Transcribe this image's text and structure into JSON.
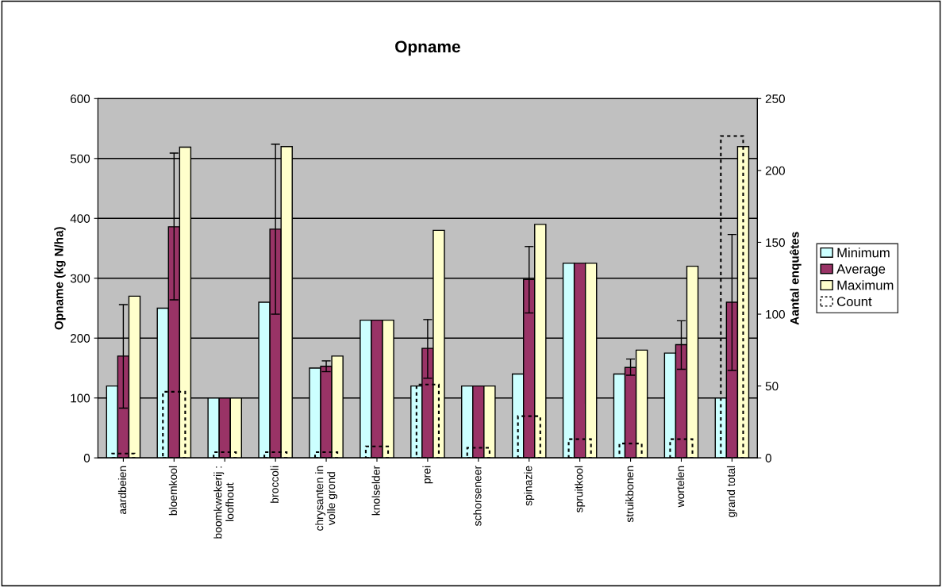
{
  "chart_data": {
    "type": "bar",
    "title": "Opname",
    "ylabel": "Opname (kg N/ha)",
    "y2label": "Aantal enquêtes",
    "categories": [
      "aardbeien",
      "bloemkool",
      "boomkwekerij :\nloofhout",
      "broccoli",
      "chrysanten in\nvolle grond",
      "knolselder",
      "prei",
      "schorseneer",
      "spinazie",
      "spruitkool",
      "struikbonen",
      "wortelen",
      "grand total"
    ],
    "series": [
      {
        "name": "Minimum",
        "color": "#ccffff",
        "values": [
          120,
          250,
          100,
          260,
          150,
          230,
          120,
          120,
          140,
          325,
          140,
          175,
          100
        ]
      },
      {
        "name": "Average",
        "color": "#993366",
        "values": [
          170,
          386,
          100,
          382,
          153,
          230,
          183,
          120,
          298,
          325,
          151,
          189,
          260
        ],
        "errors": [
          [
            83,
            256
          ],
          [
            264,
            509
          ],
          null,
          [
            240,
            524
          ],
          [
            144,
            162
          ],
          null,
          [
            133,
            231
          ],
          null,
          [
            242,
            353
          ],
          null,
          [
            138,
            165
          ],
          [
            148,
            229
          ],
          [
            146,
            373
          ]
        ]
      },
      {
        "name": "Maximum",
        "color": "#ffffcc",
        "values": [
          270,
          519,
          100,
          520,
          170,
          230,
          380,
          120,
          390,
          325,
          180,
          320,
          520
        ]
      },
      {
        "name": "Count",
        "color": "#000000",
        "axis": "y2",
        "line_style": "dashed",
        "values": [
          3,
          46,
          4,
          4,
          4,
          8,
          51,
          7,
          29,
          13,
          10,
          13,
          224
        ]
      }
    ],
    "ylim": [
      0,
      600
    ],
    "yticks": [
      0,
      100,
      200,
      300,
      400,
      500,
      600
    ],
    "y2lim": [
      0,
      250
    ],
    "y2ticks": [
      0,
      50,
      100,
      150,
      200,
      250
    ],
    "grid": "y",
    "legend": "right"
  }
}
